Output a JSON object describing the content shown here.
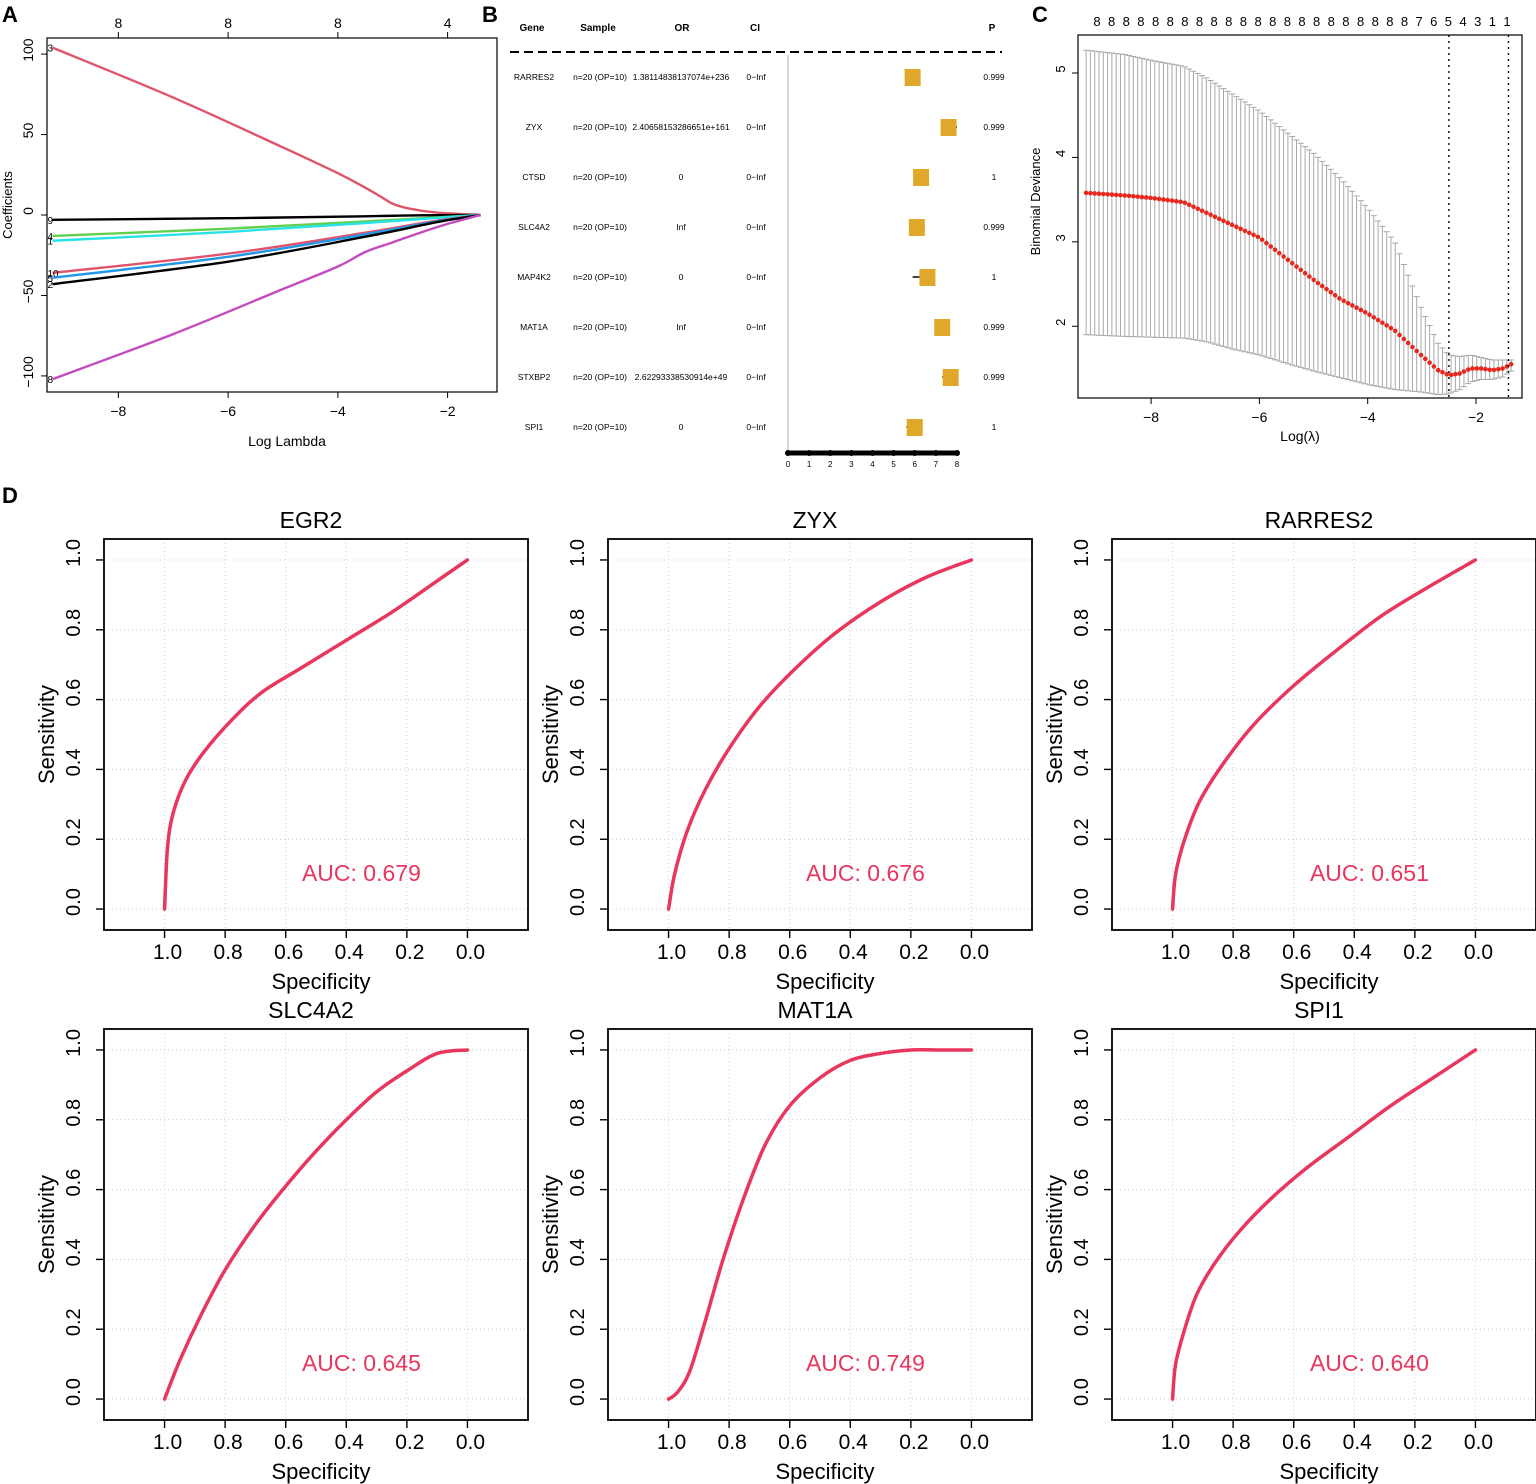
{
  "figure": {
    "panel_letters": [
      "A",
      "B",
      "C",
      "D"
    ]
  },
  "colors": {
    "roc_line": "#e8365e",
    "auc_text": "#e8365e",
    "deviance_point": "#e8271f",
    "error_bar": "#a8a8a8",
    "forest_box": "#e0a82a",
    "grid": "#cccccc"
  },
  "chart_data": [
    {
      "panel": "A",
      "type": "line",
      "title": "",
      "xlabel": "Log Lambda",
      "ylabel": "Coefficients",
      "xlim": [
        -9.3,
        -1.1
      ],
      "ylim": [
        -110,
        110
      ],
      "x_ticks": [
        -8,
        -6,
        -4,
        -2
      ],
      "y_ticks": [
        -100,
        -50,
        0,
        50,
        100
      ],
      "top_axis_ticks": [
        {
          "x": -8,
          "label": "8"
        },
        {
          "x": -6,
          "label": "8"
        },
        {
          "x": -4,
          "label": "8"
        },
        {
          "x": -2,
          "label": "4"
        }
      ],
      "series": [
        {
          "name": "3",
          "color": "#df536b",
          "x": [
            -9.2,
            -7,
            -5,
            -4,
            -3.5,
            -3.2,
            -3.0,
            -2.7,
            -2.2,
            -1.4
          ],
          "values": [
            104,
            73,
            42,
            26,
            17,
            11,
            7,
            4,
            1.5,
            0
          ]
        },
        {
          "name": "9",
          "color": "#000000",
          "x": [
            -9.2,
            -6,
            -3.5,
            -2.5,
            -1.4
          ],
          "values": [
            -3,
            -2,
            -0.8,
            -0.2,
            0
          ]
        },
        {
          "name": "4",
          "color": "#61d04f",
          "x": [
            -9.2,
            -6,
            -3.5,
            -2.2,
            -1.4
          ],
          "values": [
            -13,
            -8.5,
            -4,
            -1.5,
            0
          ]
        },
        {
          "name": "1",
          "color": "#28e2e5",
          "x": [
            -9.2,
            -6,
            -3.5,
            -2.2,
            -1.4
          ],
          "values": [
            -16,
            -10.5,
            -5,
            -1.8,
            0
          ]
        },
        {
          "name": "10",
          "color": "#df536b",
          "x": [
            -9.2,
            -6,
            -3.5,
            -2.2,
            -1.4
          ],
          "values": [
            -36,
            -24,
            -11,
            -3.5,
            0
          ]
        },
        {
          "name": "5",
          "color": "#2297e6",
          "x": [
            -9.2,
            -6,
            -3.5,
            -2.2,
            -1.4
          ],
          "values": [
            -39,
            -26,
            -12,
            -4,
            0
          ]
        },
        {
          "name": "2",
          "color": "#000000",
          "x": [
            -9.2,
            -6,
            -3.5,
            -2.2,
            -1.4
          ],
          "values": [
            -43,
            -29,
            -13.5,
            -4.5,
            0
          ]
        },
        {
          "name": "8",
          "color": "#c44ac0",
          "x": [
            -9.2,
            -7,
            -5,
            -4,
            -3.5,
            -3,
            -2.5,
            -2,
            -1.4
          ],
          "values": [
            -102,
            -74,
            -46,
            -32,
            -23,
            -17,
            -11,
            -5.5,
            0
          ]
        }
      ]
    },
    {
      "panel": "B",
      "type": "table",
      "headers": [
        "Gene",
        "Sample",
        "OR",
        "CI",
        "P"
      ],
      "rows": [
        {
          "gene": "RARRES2",
          "sample": "n=20 (OP=10)",
          "or": "1.38114838137074e+236",
          "ci": "0−Inf",
          "p": "0.999",
          "point": 5.9,
          "ci_low": 5.6,
          "ci_high": 6.1
        },
        {
          "gene": "ZYX",
          "sample": "n=20 (OP=10)",
          "or": "2.40658153286651e+161",
          "ci": "0−Inf",
          "p": "0.999",
          "point": 7.6,
          "ci_low": 7.4,
          "ci_high": 8.0
        },
        {
          "gene": "CTSD",
          "sample": "n=20 (OP=10)",
          "or": "0",
          "ci": "0−Inf",
          "p": "1",
          "point": 6.3,
          "ci_low": 6.1,
          "ci_high": 6.5
        },
        {
          "gene": "SLC4A2",
          "sample": "n=20 (OP=10)",
          "or": "Inf",
          "ci": "0−Inf",
          "p": "0.999",
          "point": 6.1,
          "ci_low": 5.9,
          "ci_high": 6.3
        },
        {
          "gene": "MAP4K2",
          "sample": "n=20 (OP=10)",
          "or": "0",
          "ci": "0−Inf",
          "p": "1",
          "point": 6.6,
          "ci_low": 5.9,
          "ci_high": 6.8
        },
        {
          "gene": "MAT1A",
          "sample": "n=20 (OP=10)",
          "or": "Inf",
          "ci": "0−Inf",
          "p": "0.999",
          "point": 7.3,
          "ci_low": 7.1,
          "ci_high": 7.5
        },
        {
          "gene": "STXBP2",
          "sample": "n=20 (OP=10)",
          "or": "2.62293338530914e+49",
          "ci": "0−Inf",
          "p": "0.999",
          "point": 7.7,
          "ci_low": 7.3,
          "ci_high": 7.9
        },
        {
          "gene": "SPI1",
          "sample": "n=20 (OP=10)",
          "or": "0",
          "ci": "0−Inf",
          "p": "1",
          "point": 6.0,
          "ci_low": 5.6,
          "ci_high": 6.2
        }
      ],
      "axis_ticks": [
        0,
        1,
        2,
        3,
        4,
        5,
        6,
        7,
        8
      ],
      "axis_range": [
        0,
        8
      ],
      "reference_line": 0
    },
    {
      "panel": "C",
      "type": "scatter",
      "xlabel": "Log(λ)",
      "ylabel": "Binomial Deviance",
      "xlim": [
        -9.35,
        -1.15
      ],
      "ylim": [
        1.15,
        5.45
      ],
      "x_ticks": [
        -8,
        -6,
        -4,
        -2
      ],
      "y_ticks": [
        2,
        3,
        4,
        5
      ],
      "top_axis_labels": [
        "8",
        "8",
        "8",
        "8",
        "8",
        "8",
        "8",
        "8",
        "8",
        "8",
        "8",
        "8",
        "8",
        "8",
        "8",
        "8",
        "8",
        "8",
        "8",
        "8",
        "8",
        "8",
        "7",
        "6",
        "5",
        "4",
        "3",
        "1",
        "1"
      ],
      "vlines": [
        -2.5,
        -1.4
      ],
      "curve_knots": {
        "x": [
          -9.2,
          -8.5,
          -8.0,
          -7.4,
          -7.0,
          -6.5,
          -6.0,
          -5.5,
          -5.0,
          -4.5,
          -4.0,
          -3.5,
          -3.0,
          -2.7,
          -2.5,
          -2.3,
          -2.1,
          -1.9,
          -1.7,
          -1.5,
          -1.35
        ],
        "mean": [
          3.58,
          3.55,
          3.52,
          3.47,
          3.35,
          3.2,
          3.05,
          2.8,
          2.55,
          2.32,
          2.15,
          1.95,
          1.65,
          1.48,
          1.42,
          1.44,
          1.5,
          1.5,
          1.48,
          1.5,
          1.55
        ],
        "upper": [
          5.27,
          5.22,
          5.15,
          5.08,
          4.95,
          4.75,
          4.55,
          4.3,
          4.05,
          3.75,
          3.4,
          3.0,
          2.2,
          1.8,
          1.66,
          1.64,
          1.66,
          1.63,
          1.6,
          1.6,
          1.6
        ],
        "lower": [
          1.9,
          1.88,
          1.87,
          1.86,
          1.82,
          1.73,
          1.66,
          1.56,
          1.47,
          1.39,
          1.31,
          1.25,
          1.22,
          1.19,
          1.2,
          1.25,
          1.34,
          1.37,
          1.37,
          1.4,
          1.47
        ]
      },
      "n_points": 100
    },
    {
      "panel": "D",
      "type": "line",
      "title": "EGR2",
      "xlabel": "Specificity",
      "ylabel": "Sensitivity",
      "auc_label": "AUC: 0.679",
      "x_reversed": true,
      "xlim": [
        1.2,
        -0.2
      ],
      "ylim": [
        0,
        1
      ],
      "x_ticks": [
        1.0,
        0.8,
        0.6,
        0.4,
        0.2,
        0.0
      ],
      "y_ticks": [
        0.0,
        0.2,
        0.4,
        0.6,
        0.8,
        1.0
      ],
      "roc_specificity": [
        1.0,
        0.99,
        0.97,
        0.93,
        0.87,
        0.78,
        0.68,
        0.55,
        0.4,
        0.25,
        0.1,
        0.0
      ],
      "roc_sensitivity": [
        0.0,
        0.18,
        0.28,
        0.37,
        0.45,
        0.54,
        0.62,
        0.69,
        0.77,
        0.85,
        0.94,
        1.0
      ]
    },
    {
      "panel": "D",
      "type": "line",
      "title": "ZYX",
      "xlabel": "Specificity",
      "ylabel": "Sensitivity",
      "auc_label": "AUC: 0.676",
      "x_reversed": true,
      "xlim": [
        1.2,
        -0.2
      ],
      "ylim": [
        0,
        1
      ],
      "x_ticks": [
        1.0,
        0.8,
        0.6,
        0.4,
        0.2,
        0.0
      ],
      "y_ticks": [
        0.0,
        0.2,
        0.4,
        0.6,
        0.8,
        1.0
      ],
      "roc_specificity": [
        1.0,
        0.98,
        0.94,
        0.88,
        0.8,
        0.7,
        0.58,
        0.45,
        0.3,
        0.15,
        0.0
      ],
      "roc_sensitivity": [
        0.0,
        0.1,
        0.22,
        0.34,
        0.46,
        0.58,
        0.69,
        0.79,
        0.88,
        0.95,
        1.0
      ]
    },
    {
      "panel": "D",
      "type": "line",
      "title": "RARRES2",
      "xlabel": "Specificity",
      "ylabel": "Sensitivity",
      "auc_label": "AUC: 0.651",
      "x_reversed": true,
      "xlim": [
        1.2,
        -0.2
      ],
      "ylim": [
        0,
        1
      ],
      "x_ticks": [
        1.0,
        0.8,
        0.6,
        0.4,
        0.2,
        0.0
      ],
      "y_ticks": [
        0.0,
        0.2,
        0.4,
        0.6,
        0.8,
        1.0
      ],
      "roc_specificity": [
        1.0,
        0.99,
        0.96,
        0.91,
        0.83,
        0.73,
        0.6,
        0.46,
        0.31,
        0.16,
        0.0
      ],
      "roc_sensitivity": [
        0.0,
        0.1,
        0.2,
        0.31,
        0.42,
        0.53,
        0.64,
        0.74,
        0.84,
        0.92,
        1.0
      ]
    },
    {
      "panel": "D",
      "type": "line",
      "title": "SLC4A2",
      "xlabel": "Specificity",
      "ylabel": "Sensitivity",
      "auc_label": "AUC: 0.645",
      "x_reversed": true,
      "xlim": [
        1.2,
        -0.2
      ],
      "ylim": [
        0,
        1
      ],
      "x_ticks": [
        1.0,
        0.8,
        0.6,
        0.4,
        0.2,
        0.0
      ],
      "y_ticks": [
        0.0,
        0.2,
        0.4,
        0.6,
        0.8,
        1.0
      ],
      "roc_specificity": [
        1.0,
        0.95,
        0.88,
        0.8,
        0.7,
        0.6,
        0.5,
        0.4,
        0.3,
        0.2,
        0.1,
        0.0
      ],
      "roc_sensitivity": [
        0.0,
        0.11,
        0.24,
        0.37,
        0.5,
        0.61,
        0.71,
        0.8,
        0.88,
        0.94,
        0.99,
        1.0
      ]
    },
    {
      "panel": "D",
      "type": "line",
      "title": "MAT1A",
      "xlabel": "Specificity",
      "ylabel": "Sensitivity",
      "auc_label": "AUC: 0.749",
      "x_reversed": true,
      "xlim": [
        1.2,
        -0.2
      ],
      "ylim": [
        0,
        1
      ],
      "x_ticks": [
        1.0,
        0.8,
        0.6,
        0.4,
        0.2,
        0.0
      ],
      "y_ticks": [
        0.0,
        0.2,
        0.4,
        0.6,
        0.8,
        1.0
      ],
      "roc_specificity": [
        1.0,
        0.97,
        0.93,
        0.88,
        0.82,
        0.75,
        0.68,
        0.6,
        0.5,
        0.4,
        0.3,
        0.2,
        0.1,
        0.0
      ],
      "roc_sensitivity": [
        0.0,
        0.02,
        0.08,
        0.22,
        0.4,
        0.58,
        0.73,
        0.84,
        0.92,
        0.97,
        0.99,
        1.0,
        1.0,
        1.0
      ]
    },
    {
      "panel": "D",
      "type": "line",
      "title": "SPI1",
      "xlabel": "Specificity",
      "ylabel": "Sensitivity",
      "auc_label": "AUC: 0.640",
      "x_reversed": true,
      "xlim": [
        1.2,
        -0.2
      ],
      "ylim": [
        0,
        1
      ],
      "x_ticks": [
        1.0,
        0.8,
        0.6,
        0.4,
        0.2,
        0.0
      ],
      "y_ticks": [
        0.0,
        0.2,
        0.4,
        0.6,
        0.8,
        1.0
      ],
      "roc_specificity": [
        1.0,
        0.99,
        0.96,
        0.92,
        0.86,
        0.78,
        0.68,
        0.56,
        0.42,
        0.28,
        0.14,
        0.0
      ],
      "roc_sensitivity": [
        0.0,
        0.1,
        0.2,
        0.3,
        0.39,
        0.48,
        0.57,
        0.66,
        0.75,
        0.84,
        0.92,
        1.0
      ]
    }
  ]
}
